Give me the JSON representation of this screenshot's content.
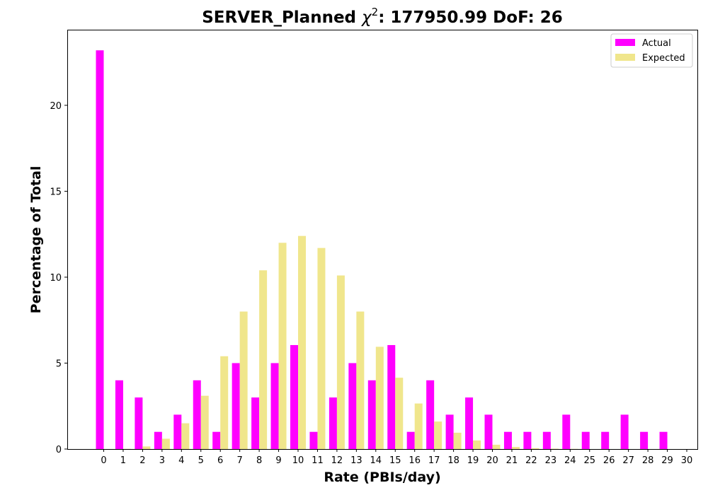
{
  "chart_data": {
    "type": "bar",
    "title_main": "SERVER_Planned ",
    "title_chi_symbol": "χ",
    "title_chi_exp": "2",
    "title_rest": ": 177950.99 DoF: 26",
    "xlabel": "Rate (PBIs/day)",
    "ylabel": "Percentage of Total",
    "ylim": [
      0,
      24.4
    ],
    "yticks": [
      0,
      5,
      10,
      15,
      20
    ],
    "categories": [
      "0",
      "1",
      "2",
      "3",
      "4",
      "5",
      "6",
      "7",
      "8",
      "9",
      "10",
      "11",
      "12",
      "13",
      "14",
      "15",
      "16",
      "17",
      "18",
      "19",
      "20",
      "21",
      "22",
      "23",
      "24",
      "25",
      "26",
      "27",
      "28",
      "29",
      "30"
    ],
    "series": [
      {
        "name": "Actual",
        "color": "#ff00ff",
        "values": [
          23.2,
          4.0,
          3.0,
          1.0,
          2.0,
          4.0,
          1.0,
          5.0,
          3.0,
          5.0,
          6.05,
          1.0,
          3.0,
          5.0,
          4.0,
          6.05,
          1.0,
          4.0,
          2.0,
          3.0,
          2.0,
          1.0,
          1.0,
          1.0,
          2.0,
          1.0,
          1.0,
          2.0,
          1.0,
          1.0,
          0
        ]
      },
      {
        "name": "Expected",
        "color": "#f0e68c",
        "values": [
          0,
          0.01,
          0.15,
          0.6,
          1.5,
          3.1,
          5.4,
          8.0,
          10.4,
          12.0,
          12.4,
          11.7,
          10.1,
          8.0,
          5.95,
          4.15,
          2.65,
          1.6,
          0.95,
          0.5,
          0.25,
          0.12,
          0.05,
          0.02,
          0.01,
          0,
          0,
          0,
          0,
          0,
          0
        ]
      }
    ],
    "legend_position": "upper right",
    "grid": false
  }
}
